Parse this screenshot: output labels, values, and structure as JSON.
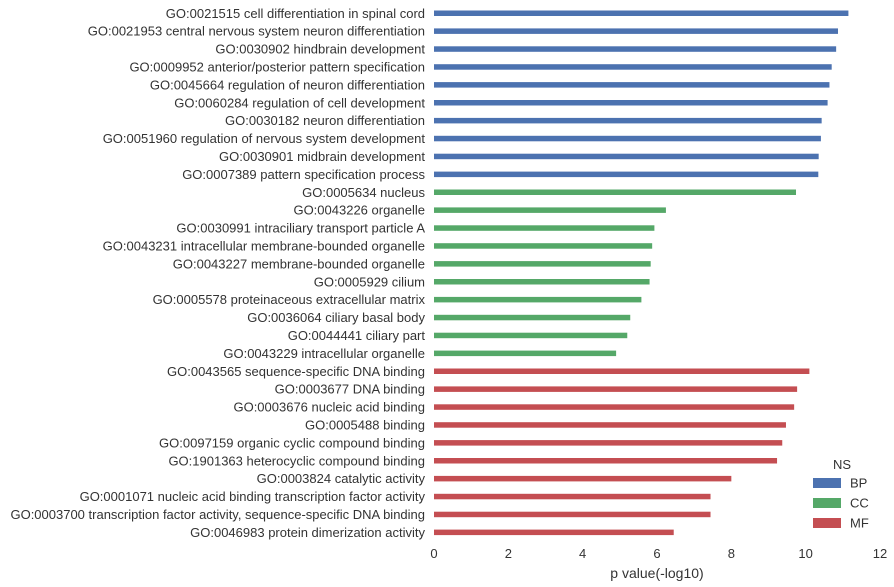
{
  "chart_data": {
    "type": "bar",
    "orientation": "horizontal",
    "xlabel": "p value(-log10)",
    "ylabel": "",
    "xlim": [
      0,
      12
    ],
    "xticks": [
      0,
      2,
      4,
      6,
      8,
      10,
      12
    ],
    "grid": false,
    "legend": {
      "title": "NS",
      "placement": "bottom-right",
      "entries": [
        {
          "name": "BP",
          "color": "#4c72b0"
        },
        {
          "name": "CC",
          "color": "#55a868"
        },
        {
          "name": "MF",
          "color": "#c44e52"
        }
      ]
    },
    "categories": [
      "GO:0021515 cell differentiation in spinal cord",
      "GO:0021953 central nervous system neuron differentiation",
      "GO:0030902 hindbrain development",
      "GO:0009952 anterior/posterior pattern specification",
      "GO:0045664 regulation of neuron differentiation",
      "GO:0060284 regulation of cell development",
      "GO:0030182 neuron differentiation",
      "GO:0051960 regulation of nervous system development",
      "GO:0030901 midbrain development",
      "GO:0007389 pattern specification process",
      "GO:0005634 nucleus",
      "GO:0043226 organelle",
      "GO:0030991 intraciliary transport particle A",
      "GO:0043231 intracellular membrane-bounded organelle",
      "GO:0043227 membrane-bounded organelle",
      "GO:0005929 cilium",
      "GO:0005578 proteinaceous extracellular matrix",
      "GO:0036064 ciliary basal body",
      "GO:0044441 ciliary part",
      "GO:0043229 intracellular organelle",
      "GO:0043565 sequence-specific DNA binding",
      "GO:0003677 DNA binding",
      "GO:0003676 nucleic acid binding",
      "GO:0005488 binding",
      "GO:0097159 organic cyclic compound binding",
      "GO:1901363 heterocyclic compound binding",
      "GO:0003824 catalytic activity",
      "GO:0001071 nucleic acid binding transcription factor activity",
      "GO:0003700 transcription factor activity, sequence-specific DNA binding",
      "GO:0046983 protein dimerization activity"
    ],
    "values": [
      11.15,
      10.87,
      10.82,
      10.7,
      10.64,
      10.59,
      10.43,
      10.41,
      10.35,
      10.34,
      9.74,
      6.24,
      5.93,
      5.87,
      5.83,
      5.8,
      5.58,
      5.28,
      5.2,
      4.9,
      10.1,
      9.77,
      9.69,
      9.47,
      9.37,
      9.23,
      8.0,
      7.44,
      7.44,
      6.45
    ],
    "groups": [
      "BP",
      "BP",
      "BP",
      "BP",
      "BP",
      "BP",
      "BP",
      "BP",
      "BP",
      "BP",
      "CC",
      "CC",
      "CC",
      "CC",
      "CC",
      "CC",
      "CC",
      "CC",
      "CC",
      "CC",
      "MF",
      "MF",
      "MF",
      "MF",
      "MF",
      "MF",
      "MF",
      "MF",
      "MF",
      "MF"
    ]
  }
}
